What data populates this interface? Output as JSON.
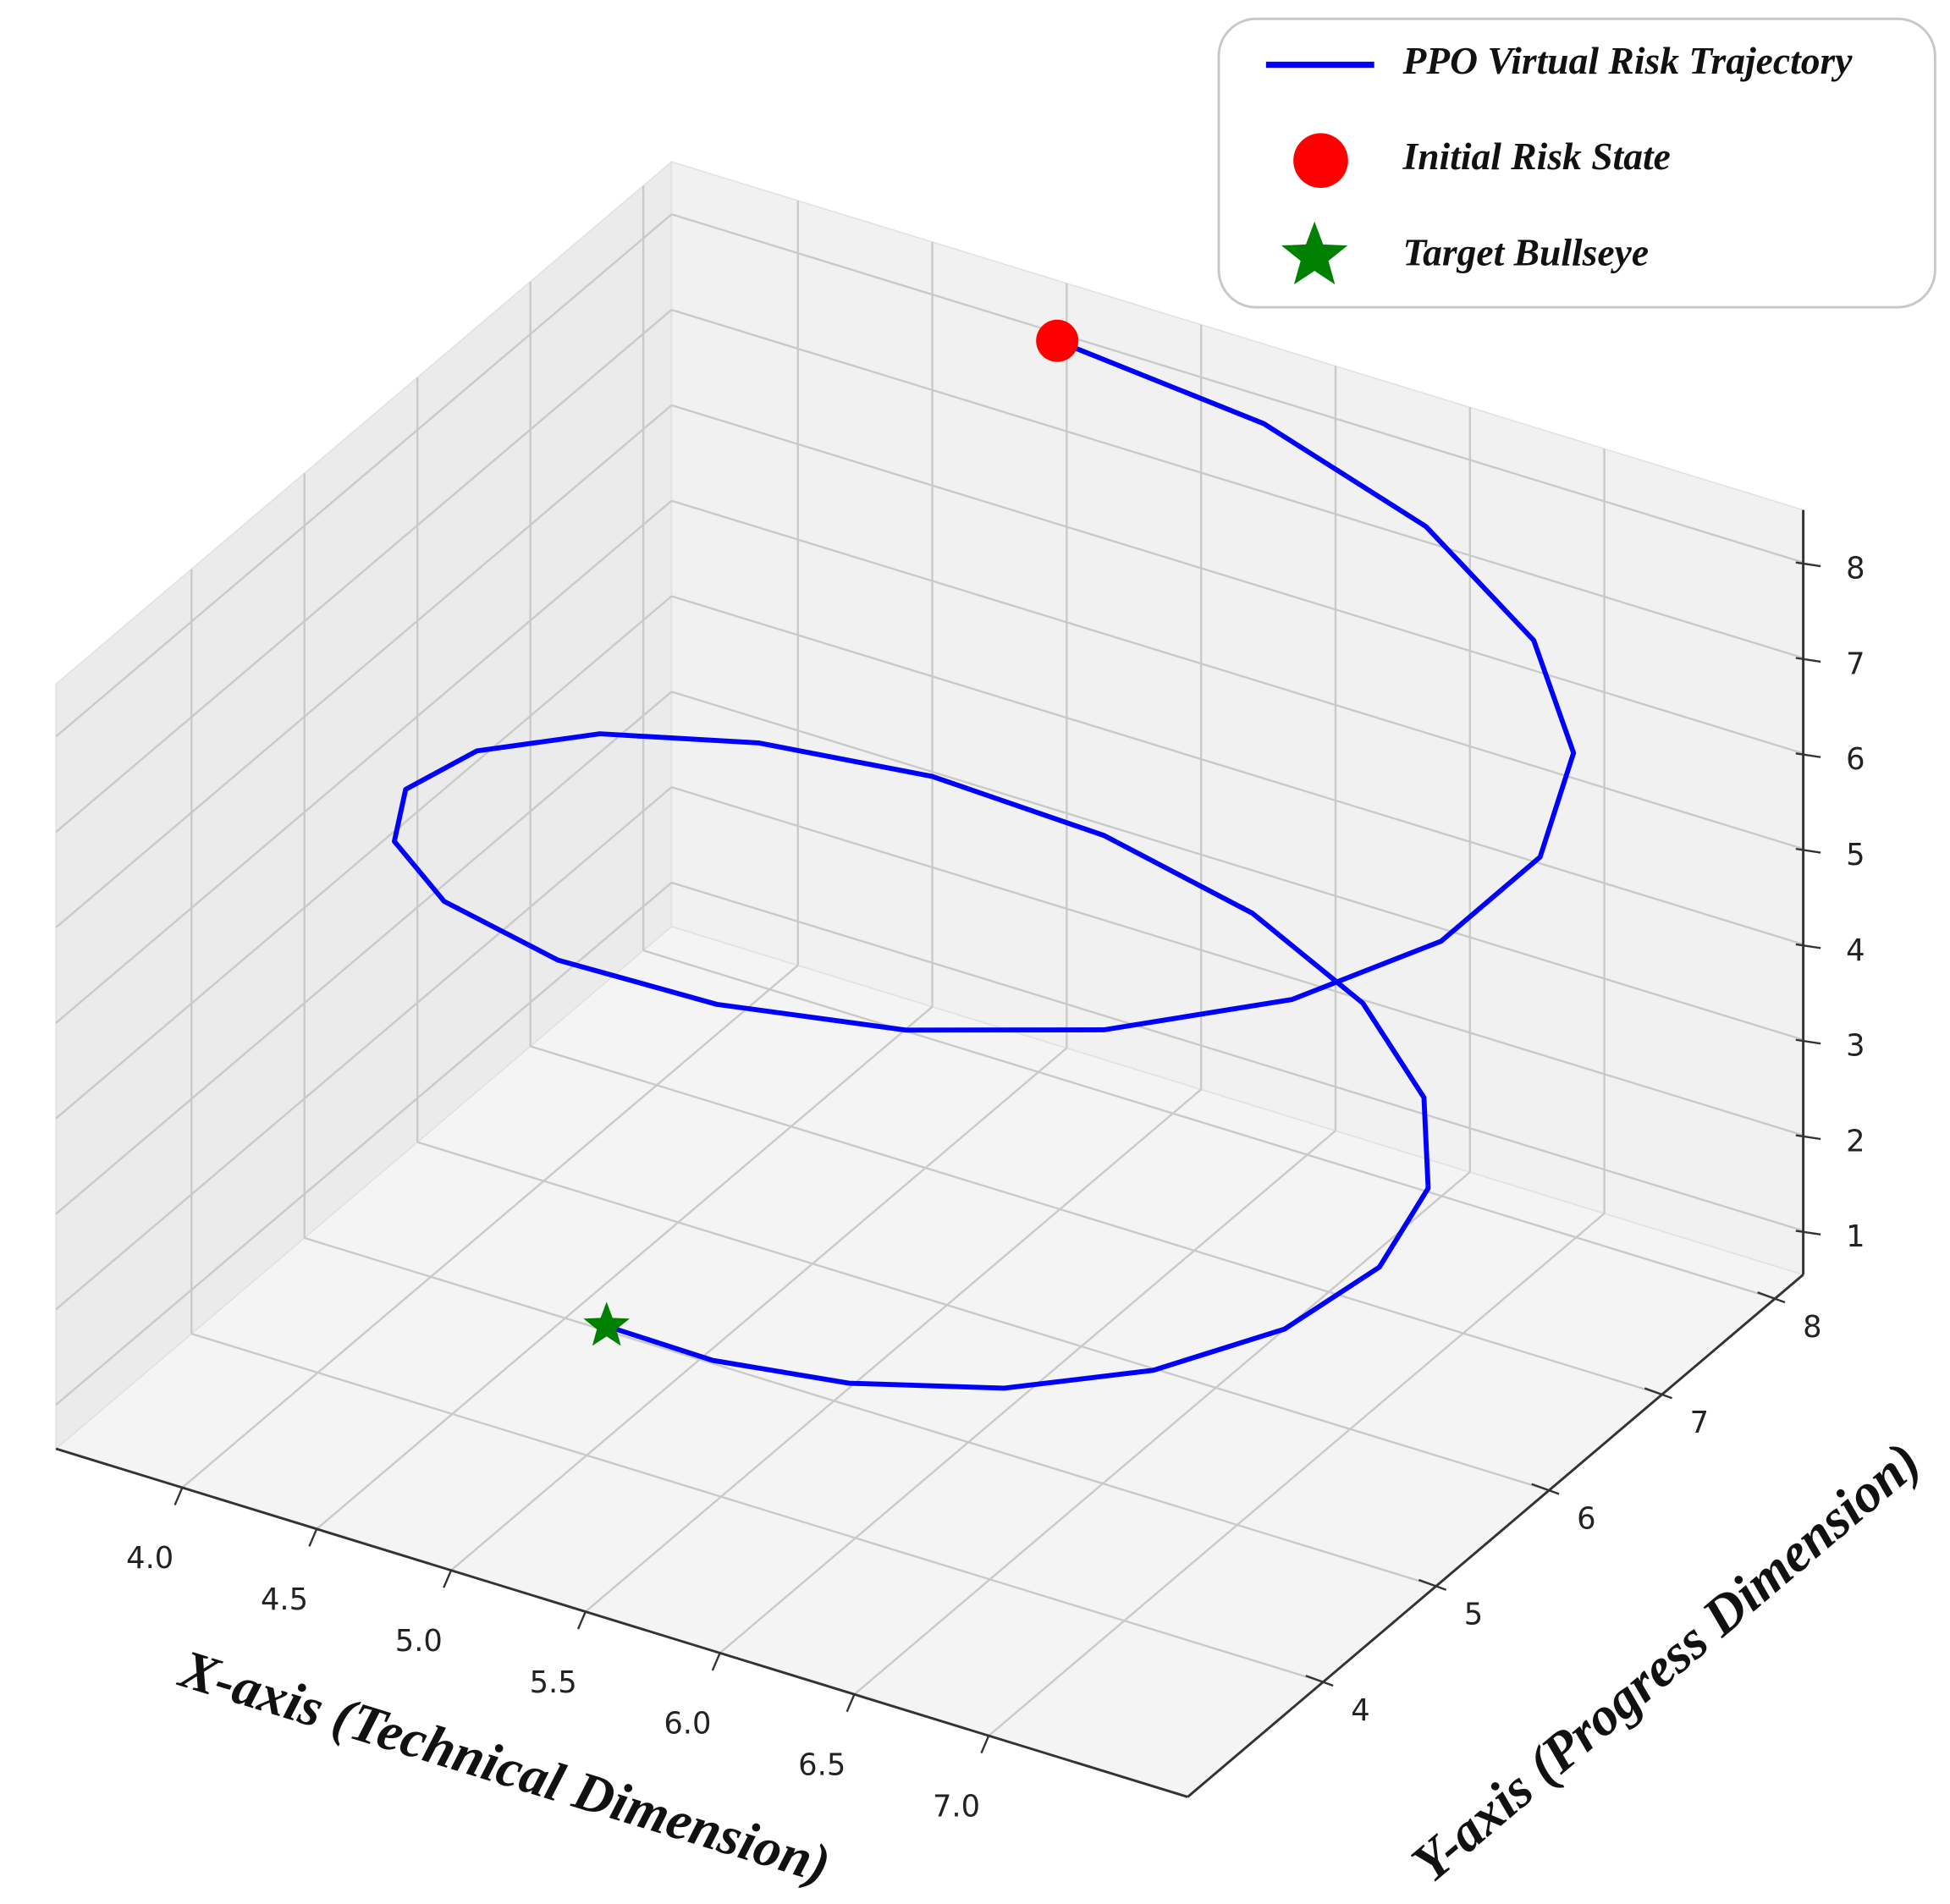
{
  "chart_data": {
    "type": "line3d",
    "xlabel": "X-axis (Technical Dimension)",
    "ylabel": "Y-axis (Progress Dimension)",
    "xlim": [
      3.53,
      7.74
    ],
    "ylim": [
      2.8,
      8.25
    ],
    "zlim": [
      0.54,
      8.55
    ],
    "xticks": [
      {
        "value": 4,
        "label": "4.0"
      },
      4.5,
      {
        "value": 5,
        "label": "5.0"
      },
      5.5,
      {
        "value": 6,
        "label": "6.0"
      },
      6.5,
      {
        "value": 7,
        "label": "7.0"
      }
    ],
    "yticks": [
      4,
      5,
      6,
      7,
      8
    ],
    "zticks": [
      1,
      2,
      3,
      4,
      5,
      6,
      7,
      8
    ],
    "grid": true,
    "legend": "upper right",
    "series": [
      {
        "name": "PPO Virtual Risk Trajectory",
        "color": "#0000ff",
        "marker": "line",
        "x": [
          4.99,
          5.75,
          6.45,
          7.04,
          7.44,
          7.61,
          7.54,
          7.25,
          6.76,
          6.15,
          5.48,
          4.83,
          4.26,
          3.86,
          3.65,
          3.65,
          3.86,
          4.25,
          4.76,
          5.35,
          5.93,
          6.45,
          6.85,
          7.08,
          7.13,
          7.0,
          6.7,
          6.28,
          5.77,
          5.25,
          4.78
        ],
        "y": [
          8.19,
          8.21,
          7.98,
          7.53,
          6.93,
          6.23,
          5.52,
          4.89,
          4.39,
          4.09,
          4.01,
          4.15,
          4.5,
          5.01,
          5.61,
          6.24,
          6.83,
          7.31,
          7.63,
          7.75,
          7.68,
          7.42,
          7.01,
          6.5,
          5.95,
          5.42,
          4.97,
          4.65,
          4.49,
          4.52,
          4.7
        ],
        "z": [
          8.0,
          7.77,
          7.53,
          7.3,
          7.07,
          6.83,
          6.6,
          6.37,
          6.13,
          5.9,
          5.67,
          5.43,
          5.2,
          4.97,
          4.73,
          4.5,
          4.27,
          4.03,
          3.8,
          3.57,
          3.33,
          3.1,
          2.87,
          2.63,
          2.4,
          2.17,
          1.93,
          1.7,
          1.47,
          1.23,
          1.0
        ]
      },
      {
        "name": "Initial Risk State",
        "color": "#ff0000",
        "marker": "circle",
        "x": [
          4.99
        ],
        "y": [
          8.19
        ],
        "z": [
          8.0
        ]
      },
      {
        "name": "Target Bullseye",
        "color": "#008000",
        "marker": "star",
        "x": [
          4.78
        ],
        "y": [
          4.7
        ],
        "z": [
          1.0
        ]
      }
    ]
  }
}
